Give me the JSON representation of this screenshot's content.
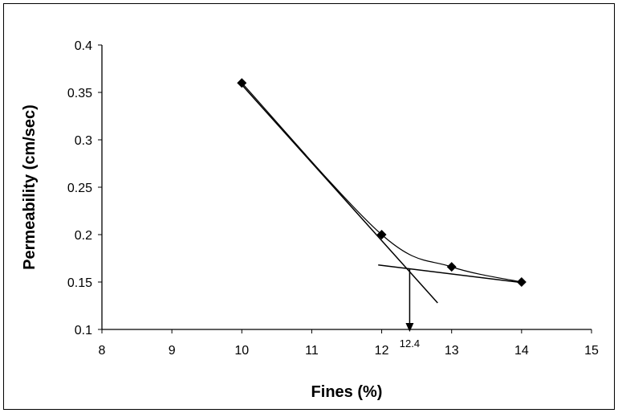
{
  "chart_data": {
    "type": "line",
    "title": "",
    "xlabel": "Fines (%)",
    "ylabel": "Permeability (cm/sec)",
    "xlim": [
      8,
      15
    ],
    "ylim": [
      0.1,
      0.4
    ],
    "x_ticks": [
      "8",
      "9",
      "10",
      "11",
      "12",
      "13",
      "14",
      "15"
    ],
    "y_ticks": [
      "0.1",
      "0.15",
      "0.2",
      "0.25",
      "0.3",
      "0.35",
      "0.4"
    ],
    "grid": false,
    "legend": "none",
    "series": [
      {
        "x": [
          10,
          12,
          13,
          14
        ],
        "y": [
          0.36,
          0.2,
          0.166,
          0.15
        ],
        "marker": "diamond",
        "color": "#000000"
      }
    ],
    "annotations": {
      "steep_fit_line": {
        "from": [
          10,
          0.358
        ],
        "to": [
          12.8,
          0.128
        ]
      },
      "flat_fit_line": {
        "from": [
          11.95,
          0.168
        ],
        "to": [
          14.05,
          0.149
        ]
      },
      "intersection": {
        "x": 12.4,
        "y": 0.164,
        "label": "12.4"
      }
    }
  }
}
